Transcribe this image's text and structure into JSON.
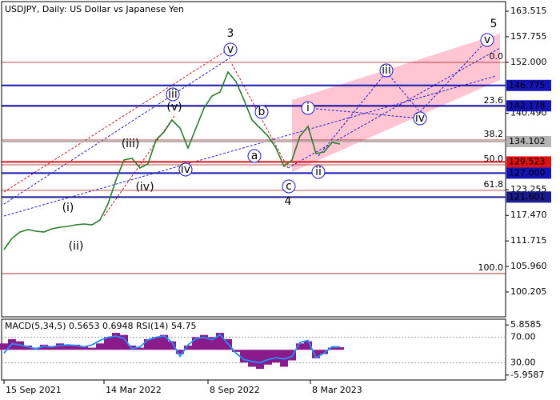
{
  "chart_data": [
    {
      "type": "line",
      "title": "USDJPY, Daily:  US Dollar vs Japanese Yen",
      "series": [
        {
          "color": "#2a7d2a",
          "values": [
            109.76,
            112.29,
            113.73,
            114.27,
            113.91,
            113.73,
            114.45,
            114.81,
            114.99,
            115.35,
            115.53,
            115.35,
            116.43,
            120.04,
            125.45,
            129.96,
            130.33,
            128.16,
            129.07,
            134.48,
            136.28,
            138.98,
            137.18,
            132.67,
            137.18,
            141.69,
            144.4,
            145.3,
            149.81,
            147.64,
            143.49,
            138.98,
            137.18,
            135.37,
            132.67,
            128.52,
            129.96,
            135.37,
            137.54,
            131.41,
            131.77,
            133.93,
            133.57
          ]
        }
      ],
      "ylim": [
        94.6,
        165.68
      ],
      "yticks": [
        163.515,
        157.755,
        {
          "value": 152,
          "label": "152.000"
        },
        {
          "value": 140.49,
          "label": "140.490"
        },
        123.255,
        {
          "value": 117.47,
          "label": "117.470"
        },
        111.715,
        {
          "value": 105.96,
          "label": "105.960"
        },
        100.205
      ],
      "xlim": [
        -0.3,
        62.7
      ],
      "xticks": [
        {
          "value": 0,
          "label": "15 Sep 2021"
        },
        {
          "value": 12.5,
          "label": "14 Mar 2022"
        },
        {
          "value": 25.5,
          "label": "8 Sep 2022"
        },
        {
          "value": 38.3,
          "label": "8 Mar 2023"
        }
      ],
      "levels": [
        {
          "value": 146.775,
          "color": "#1414b4"
        },
        {
          "value": 142.178,
          "color": "#1414b4"
        },
        {
          "value": 134.102,
          "color": "#b4b4b4"
        },
        {
          "value": 129.523,
          "color": "#e01010"
        },
        {
          "value": 127,
          "label": "127.000",
          "color": "#1414b4"
        },
        {
          "value": 121.601,
          "color": "#1a1a8c"
        }
      ],
      "fib_levels": [
        {
          "label": "0.0",
          "value": 151.97
        },
        {
          "label": "23.6",
          "value": 142.05
        },
        {
          "label": "38.2",
          "value": 134.47
        },
        {
          "label": "50.0",
          "value": 128.88
        },
        {
          "label": "61.8",
          "value": 123.1
        },
        {
          "label": "100.0",
          "value": 104.35
        }
      ],
      "fib_color": "#a01818",
      "wave_labels": [
        {
          "text": "(i)",
          "color": "#d42020"
        },
        {
          "text": "(ii)",
          "color": "#d42020"
        },
        {
          "text": "(iii)",
          "color": "#d42020"
        },
        {
          "text": "(iv)",
          "color": "#d42020"
        },
        {
          "text": "(v)",
          "color": "#d42020"
        },
        {
          "text": "3",
          "color": "#a03030"
        },
        {
          "text": "4",
          "color": "#a03030"
        },
        {
          "text": "5",
          "color": "#a03030"
        },
        {
          "text": "iii",
          "color": "#1a1acc",
          "circled": true
        },
        {
          "text": "iv",
          "color": "#1a1acc",
          "circled": true
        },
        {
          "text": "v",
          "color": "#1a1acc",
          "circled": true
        },
        {
          "text": "a",
          "color": "#1a1acc",
          "circled": true
        },
        {
          "text": "b",
          "color": "#1a1acc",
          "circled": true
        },
        {
          "text": "c",
          "color": "#1a1acc",
          "circled": true
        },
        {
          "text": "i",
          "color": "#1a1acc",
          "circled": true
        },
        {
          "text": "ii",
          "color": "#1a1acc",
          "circled": true
        },
        {
          "text": "iii",
          "color": "#1a1acc",
          "circled": true
        },
        {
          "text": "iv",
          "color": "#1a1acc",
          "circled": true
        },
        {
          "text": "v",
          "color": "#1a1acc",
          "circled": true
        }
      ]
    },
    {
      "type": "macd",
      "title": "MACD(5,34,5) 0.5653 0.6948 RSI(14) 54.75",
      "series": [
        {
          "color": "#8b1a8b",
          "values": [
            1.5,
            2.5,
            2.0,
            1.0,
            0.5,
            1.2,
            0.8,
            1.5,
            1.0,
            1.2,
            0.8,
            0.5,
            1.5,
            3.0,
            4.0,
            3.5,
            1.0,
            0.5,
            2.5,
            3.0,
            3.5,
            2.0,
            -1.0,
            1.0,
            3.0,
            3.5,
            3.0,
            4.0,
            2.5,
            -0.5,
            -3.0,
            -4.0,
            -4.5,
            -3.5,
            -3.0,
            -4.0,
            -2.5,
            1.5,
            2.0,
            -2.0,
            -1.0,
            0.5,
            0.6
          ]
        },
        {
          "color": "#1e90ff",
          "axis": "y2",
          "values": [
            45,
            60,
            58,
            55,
            52,
            56,
            55,
            57,
            58,
            57,
            55,
            58,
            65,
            70,
            72,
            68,
            52,
            55,
            66,
            70,
            72,
            62,
            40,
            58,
            68,
            70,
            66,
            74,
            60,
            45,
            35,
            32,
            30,
            35,
            38,
            36,
            40,
            62,
            65,
            38,
            45,
            55,
            54.75
          ]
        }
      ],
      "ylim": [
        -7.12,
        7.21
      ],
      "yticks": [
        5.8585,
        -5.9587
      ],
      "y2lim": [
        2.9,
        98.4
      ],
      "y2ticks": [
        {
          "value": 70,
          "label": "70.00"
        },
        {
          "value": 30,
          "label": "30.00"
        }
      ]
    }
  ]
}
